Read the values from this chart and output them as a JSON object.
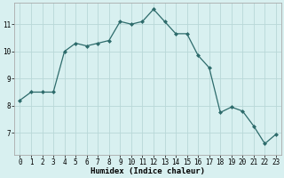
{
  "x": [
    0,
    1,
    2,
    3,
    4,
    5,
    6,
    7,
    8,
    9,
    10,
    11,
    12,
    13,
    14,
    15,
    16,
    17,
    18,
    19,
    20,
    21,
    22,
    23
  ],
  "y": [
    8.2,
    8.5,
    8.5,
    8.5,
    10.0,
    10.3,
    10.2,
    10.3,
    10.4,
    11.1,
    11.0,
    11.1,
    11.55,
    11.1,
    10.65,
    10.65,
    9.85,
    9.4,
    7.75,
    7.95,
    7.8,
    7.25,
    6.6,
    6.95
  ],
  "line_color": "#2d6b6b",
  "marker": "D",
  "marker_size": 2,
  "bg_color": "#d8f0f0",
  "grid_color": "#b8d8d8",
  "xlabel": "Humidex (Indice chaleur)",
  "xlabel_fontsize": 6.5,
  "ylabel_ticks": [
    7,
    8,
    9,
    10,
    11
  ],
  "xlim": [
    -0.5,
    23.5
  ],
  "ylim": [
    6.2,
    11.8
  ],
  "tick_fontsize": 5.5,
  "linewidth": 0.9
}
